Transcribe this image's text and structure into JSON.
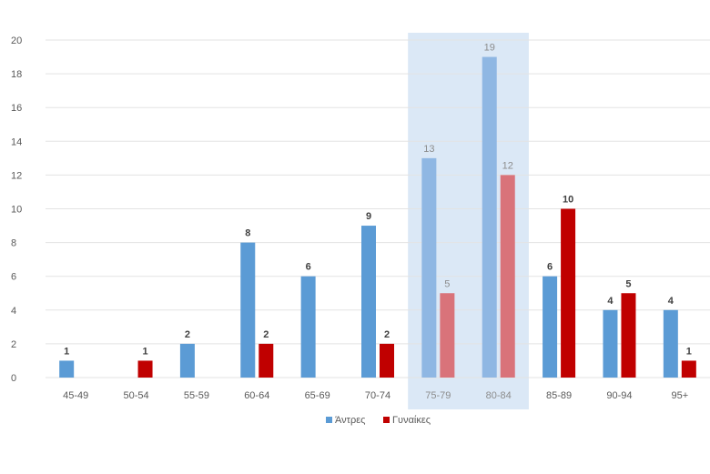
{
  "colors": {
    "men": "#5b9bd5",
    "women": "#c00000",
    "men_highlight": "#8fb7e3",
    "women_highlight": "#d9737a",
    "highlight_band": "#dbe8f6",
    "grid": "#e3e3e3",
    "axis_text": "#595959",
    "label_text": "#404040",
    "label_text_highlight": "#8c8c8c"
  },
  "chart_data": {
    "type": "bar",
    "categories": [
      "45-49",
      "50-54",
      "55-59",
      "60-64",
      "65-69",
      "70-74",
      "75-79",
      "80-84",
      "85-89",
      "90-94",
      "95+"
    ],
    "series": [
      {
        "name": "Άντρες",
        "values": [
          1,
          0,
          2,
          8,
          6,
          9,
          13,
          19,
          6,
          4,
          4
        ]
      },
      {
        "name": "Γυναίκες",
        "values": [
          0,
          1,
          0,
          2,
          0,
          2,
          5,
          12,
          10,
          5,
          1
        ]
      }
    ],
    "ylim": [
      0,
      20
    ],
    "yticks": [
      0,
      2,
      4,
      6,
      8,
      10,
      12,
      14,
      16,
      18,
      20
    ],
    "grid": true,
    "legend": "bottom",
    "highlighted_categories": [
      "75-79",
      "80-84"
    ]
  }
}
